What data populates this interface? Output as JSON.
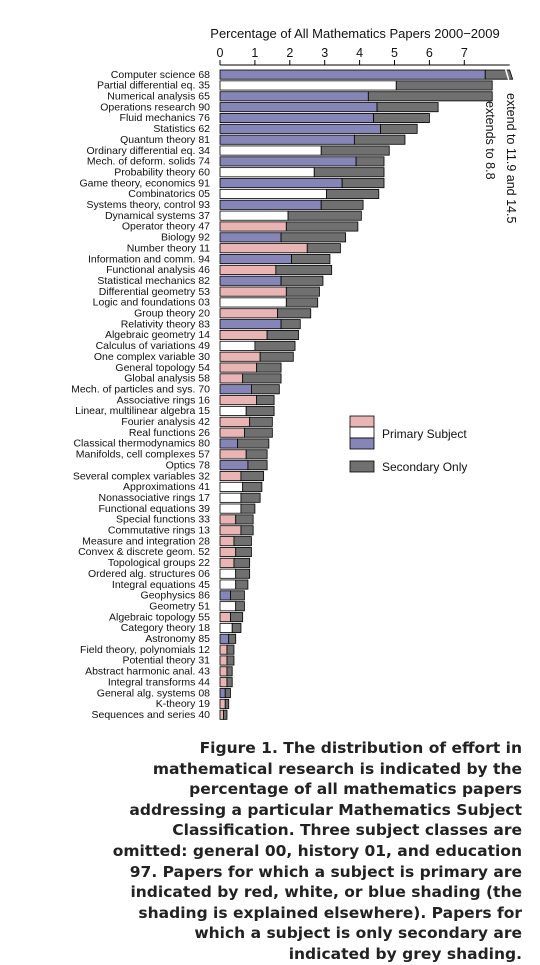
{
  "chart_data": {
    "type": "bar",
    "orientation": "horizontal",
    "stacked": true,
    "title": "Percentage of All Mathematics Papers 2000−2009",
    "xlim": [
      0,
      8.3
    ],
    "xticks": [
      "0",
      "1",
      "2",
      "3",
      "4",
      "5",
      "6",
      "7"
    ],
    "categories": [
      "Computer science  68",
      "Partial differential eq.  35",
      "Numerical analysis  65",
      "Operations research  90",
      "Fluid mechanics  76",
      "Statistics  62",
      "Quantum theory  81",
      "Ordinary differential eq.  34",
      "Mech. of deform. solids  74",
      "Probability theory  60",
      "Game theory, economics  91",
      "Combinatorics  05",
      "Systems theory, control  93",
      "Dynamical systems  37",
      "Operator theory  47",
      "Biology  92",
      "Number theory  11",
      "Information and comm.  94",
      "Functional analysis  46",
      "Statistical mechanics  82",
      "Differential geometry  53",
      "Logic and foundations  03",
      "Group theory  20",
      "Relativity theory  83",
      "Algebraic geometry  14",
      "Calculus of variations  49",
      "One complex variable  30",
      "General topology  54",
      "Global analysis  58",
      "Mech. of particles and sys.  70",
      "Associative rings  16",
      "Linear, multilinear algebra  15",
      "Fourier analysis  42",
      "Real functions  26",
      "Classical thermodynamics  80",
      "Manifolds, cell complexes  57",
      "Optics  78",
      "Several complex variables  32",
      "Approximations  41",
      "Nonassociative rings  17",
      "Functional equations  39",
      "Special functions  33",
      "Commutative rings  13",
      "Measure and integration  28",
      "Convex & discrete geom.  52",
      "Topological groups  22",
      "Ordered alg. structures  06",
      "Integral equations  45",
      "Geophysics  86",
      "Geometry  51",
      "Algebraic topology  55",
      "Category theory  18",
      "Astronomy  85",
      "Field theory, polynomials  12",
      "Potential theory  31",
      "Abstract harmonic anal.  43",
      "Integral transforms  44",
      "General alg. systems  08",
      "K-theory  19",
      "Sequences and series  40"
    ],
    "series": [
      {
        "name": "Primary Subject",
        "values": [
          7.6,
          5.05,
          4.25,
          4.5,
          4.4,
          4.6,
          3.85,
          2.9,
          3.9,
          2.7,
          3.5,
          3.05,
          2.9,
          1.95,
          1.9,
          1.75,
          2.5,
          2.05,
          1.6,
          1.75,
          1.9,
          1.9,
          1.65,
          1.75,
          1.35,
          1.0,
          1.15,
          1.05,
          0.65,
          0.9,
          1.05,
          0.75,
          0.85,
          0.7,
          0.5,
          0.75,
          0.8,
          0.6,
          0.65,
          0.6,
          0.6,
          0.45,
          0.6,
          0.4,
          0.45,
          0.4,
          0.45,
          0.45,
          0.3,
          0.45,
          0.3,
          0.35,
          0.25,
          0.2,
          0.2,
          0.2,
          0.2,
          0.15,
          0.15,
          0.1
        ]
      },
      {
        "name": "Secondary Only",
        "values": [
          0.7,
          2.75,
          3.55,
          1.75,
          1.6,
          1.05,
          1.45,
          1.95,
          0.8,
          2.0,
          1.2,
          1.5,
          1.2,
          2.1,
          2.05,
          1.85,
          0.95,
          1.1,
          1.6,
          1.2,
          0.95,
          0.9,
          0.95,
          0.55,
          0.9,
          1.15,
          0.95,
          0.7,
          1.1,
          0.8,
          0.5,
          0.8,
          0.65,
          0.8,
          0.9,
          0.6,
          0.55,
          0.65,
          0.55,
          0.55,
          0.4,
          0.5,
          0.35,
          0.5,
          0.45,
          0.45,
          0.4,
          0.35,
          0.4,
          0.25,
          0.35,
          0.25,
          0.2,
          0.2,
          0.2,
          0.15,
          0.15,
          0.15,
          0.1,
          0.1
        ]
      }
    ],
    "primary_shade": [
      "blue",
      "white",
      "blue",
      "blue",
      "blue",
      "blue",
      "blue",
      "white",
      "blue",
      "white",
      "blue",
      "white",
      "blue",
      "white",
      "red",
      "blue",
      "red",
      "blue",
      "red",
      "blue",
      "red",
      "white",
      "red",
      "blue",
      "red",
      "white",
      "red",
      "red",
      "red",
      "blue",
      "red",
      "white",
      "red",
      "red",
      "blue",
      "red",
      "blue",
      "red",
      "white",
      "white",
      "white",
      "red",
      "red",
      "red",
      "red",
      "red",
      "white",
      "white",
      "blue",
      "white",
      "red",
      "white",
      "blue",
      "red",
      "red",
      "red",
      "red",
      "blue",
      "red",
      "red"
    ],
    "colors": {
      "red": "#e8b4b4",
      "white": "#ffffff",
      "blue": "#8585b8",
      "grey": "#707070"
    },
    "legend": {
      "position": "right",
      "primary": "Primary Subject",
      "secondary": "Secondary Only"
    },
    "annotation": {
      "line1": "extend to 11.9 and 14.5",
      "line2": "extends to 8.8"
    },
    "grid": false
  },
  "caption": "Figure 1. The distribution of effort in mathematical research is indicated by the percentage of all mathematics papers addressing a particular Mathematics Subject Classification. Three subject classes are omitted: general 00, history 01, and education 97. Papers for which a subject is primary are indicated by red, white, or blue shading (the shading is explained elsewhere). Papers for which a subject is only secondary are indicated by grey shading."
}
